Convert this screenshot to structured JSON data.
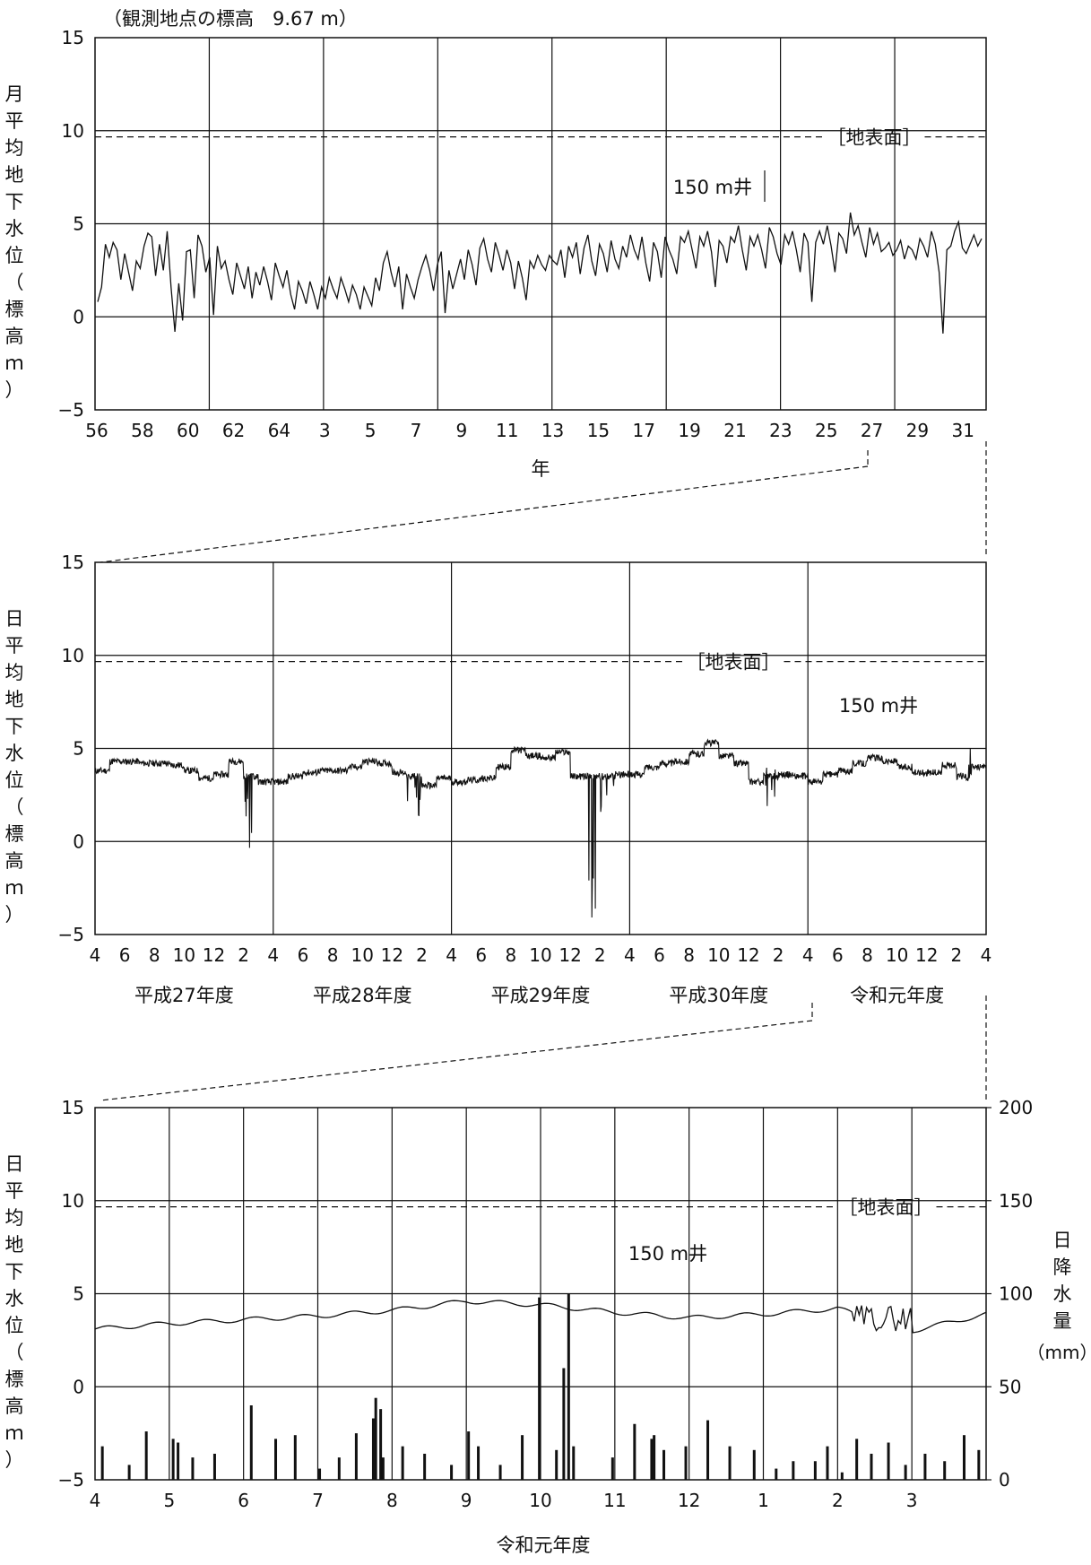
{
  "header": {
    "station_elevation": "（観測地点の標高　9.67 m）"
  },
  "style": {
    "line_color": "#111111",
    "grid_color": "#111111",
    "background": "#ffffff"
  },
  "chart_data": [
    {
      "type": "line",
      "ylabel": "月平均地下水位（標高ｍ）",
      "xlabel": "年",
      "ylim": [
        -5,
        15
      ],
      "yticks": [
        "15",
        "10",
        "5",
        "0",
        "−5"
      ],
      "xticks": [
        "56",
        "58",
        "60",
        "62",
        "64",
        "3",
        "5",
        "7",
        "9",
        "11",
        "13",
        "15",
        "17",
        "19",
        "21",
        "23",
        "25",
        "27",
        "29",
        "31"
      ],
      "ground_surface": {
        "label": "［地表面］",
        "value": 9.67
      },
      "series_label": "150 m井",
      "series": [
        {
          "x_start": "1981-04",
          "x_end": "2020-03",
          "values": [
            0.8,
            1.6,
            3.9,
            3.2,
            4.0,
            3.6,
            2.0,
            3.4,
            2.4,
            1.4,
            3.0,
            2.6,
            3.8,
            4.5,
            4.3,
            2.2,
            3.9,
            2.5,
            4.6,
            1.6,
            -0.8,
            1.8,
            -0.2,
            3.5,
            3.6,
            1.0,
            4.4,
            3.8,
            2.4,
            3.2,
            0.1,
            3.8,
            2.6,
            3.0,
            2.0,
            1.2,
            2.9,
            2.2,
            1.5,
            2.7,
            1.0,
            2.4,
            1.7,
            2.7,
            1.9,
            0.9,
            2.9,
            2.2,
            1.6,
            2.5,
            1.2,
            0.4,
            1.9,
            1.4,
            0.7,
            1.9,
            1.2,
            0.4,
            1.6,
            1.0,
            2.1,
            1.5,
            1.0,
            2.1,
            1.5,
            0.8,
            1.7,
            1.2,
            0.4,
            1.6,
            1.1,
            0.6,
            2.1,
            1.4,
            2.9,
            3.5,
            2.4,
            1.6,
            2.7,
            0.4,
            2.3,
            1.6,
            1.0,
            2.0,
            2.7,
            3.3,
            2.5,
            1.4,
            2.8,
            3.5,
            0.2,
            2.5,
            1.5,
            2.3,
            3.1,
            2.0,
            3.6,
            2.8,
            1.7,
            3.7,
            4.2,
            3.1,
            2.4,
            4.0,
            3.3,
            2.5,
            3.6,
            2.9,
            1.5,
            3.0,
            2.1,
            0.9,
            3.0,
            2.6,
            3.3,
            2.8,
            2.5,
            3.3,
            3.0,
            2.8,
            3.6,
            2.1,
            3.8,
            3.2,
            4.0,
            2.3,
            3.7,
            4.4,
            3.0,
            2.2,
            3.9,
            3.4,
            2.4,
            4.1,
            3.1,
            2.6,
            3.8,
            3.2,
            4.4,
            3.6,
            3.1,
            4.3,
            2.9,
            1.9,
            4.0,
            3.5,
            2.1,
            4.3,
            3.6,
            3.1,
            2.3,
            4.3,
            4.0,
            4.6,
            3.6,
            2.6,
            4.3,
            3.8,
            4.6,
            3.5,
            1.6,
            4.1,
            3.8,
            2.9,
            4.3,
            4.0,
            4.9,
            3.6,
            2.5,
            4.3,
            3.8,
            4.4,
            3.6,
            2.6,
            4.8,
            4.3,
            3.4,
            2.8,
            4.4,
            3.9,
            4.6,
            3.6,
            2.4,
            4.5,
            4.0,
            0.8,
            4.0,
            4.6,
            3.9,
            4.9,
            3.8,
            2.4,
            4.5,
            4.2,
            3.4,
            5.6,
            4.4,
            4.9,
            4.0,
            3.2,
            4.8,
            3.9,
            4.5,
            3.5,
            3.7,
            4.0,
            3.3,
            3.6,
            4.1,
            3.1,
            3.8,
            3.6,
            3.1,
            4.2,
            3.8,
            3.2,
            4.6,
            3.9,
            2.4,
            -0.9,
            3.6,
            3.8,
            4.6,
            5.1,
            3.7,
            3.4,
            3.9,
            4.4,
            3.8,
            4.2
          ]
        }
      ]
    },
    {
      "type": "line",
      "ylabel": "日平均地下水位（標高ｍ）",
      "ylim": [
        -5,
        15
      ],
      "yticks": [
        "15",
        "10",
        "5",
        "0",
        "−5"
      ],
      "xticks": [
        "4",
        "6",
        "8",
        "10",
        "12",
        "2",
        "4",
        "6",
        "8",
        "10",
        "12",
        "2",
        "4",
        "6",
        "8",
        "10",
        "12",
        "2",
        "4",
        "6",
        "8",
        "10",
        "12",
        "2",
        "4",
        "6",
        "8",
        "10",
        "12",
        "2",
        "4"
      ],
      "year_labels": [
        "平成27年度",
        "平成28年度",
        "平成29年度",
        "平成30年度",
        "令和元年度"
      ],
      "ground_surface": {
        "label": "［地表面］",
        "value": 9.67
      },
      "series_label": "150 m井",
      "series": [
        {
          "x_start": "2015-04",
          "x_end": "2020-03",
          "monthly_levels": [
            3.8,
            4.3,
            4.3,
            4.2,
            4.2,
            4.1,
            3.8,
            3.4,
            3.6,
            4.3,
            -0.4,
            3.2,
            3.2,
            3.5,
            3.7,
            3.8,
            3.8,
            4.0,
            4.3,
            4.2,
            3.7,
            0.4,
            3.0,
            3.4,
            3.2,
            3.3,
            3.4,
            4.0,
            4.9,
            4.6,
            4.5,
            4.8,
            3.5,
            -4.2,
            1.5,
            3.6,
            3.6,
            4.0,
            4.2,
            4.3,
            4.7,
            5.3,
            4.6,
            4.2,
            3.2,
            1.7,
            3.6,
            3.5,
            3.2,
            3.6,
            3.8,
            4.2,
            4.5,
            4.3,
            4.0,
            3.7,
            3.7,
            4.1,
            2.3,
            4.0
          ]
        }
      ]
    },
    {
      "type": "line+bar",
      "ylabel": "日平均地下水位（標高ｍ）",
      "y2label": "日降水量（mm）",
      "xlabel": "令和元年度",
      "ylim": [
        -5,
        15
      ],
      "y2lim": [
        0,
        200
      ],
      "yticks": [
        "15",
        "10",
        "5",
        "0",
        "−5"
      ],
      "y2ticks": [
        "200",
        "150",
        "100",
        "50",
        "0"
      ],
      "xticks": [
        "4",
        "5",
        "6",
        "7",
        "8",
        "9",
        "10",
        "11",
        "12",
        "1",
        "2",
        "3"
      ],
      "ground_surface": {
        "label": "［地表面］",
        "value": 9.67
      },
      "series_label": "150 m井",
      "series": [
        {
          "name": "groundwater",
          "x_start": "2019-04-01",
          "x_end": "2020-03-31",
          "monthly_levels": [
            3.1,
            3.4,
            3.6,
            3.8,
            4.1,
            4.6,
            4.4,
            4.0,
            3.7,
            3.9,
            4.2,
            3.0,
            3.9
          ]
        },
        {
          "name": "precipitation",
          "unit": "mm",
          "bars": [
            [
              3,
              18
            ],
            [
              14,
              8
            ],
            [
              21,
              26
            ],
            [
              32,
              22
            ],
            [
              34,
              20
            ],
            [
              40,
              12
            ],
            [
              49,
              14
            ],
            [
              64,
              40
            ],
            [
              74,
              22
            ],
            [
              82,
              24
            ],
            [
              92,
              6
            ],
            [
              100,
              12
            ],
            [
              107,
              25
            ],
            [
              114,
              33
            ],
            [
              115,
              44
            ],
            [
              117,
              38
            ],
            [
              118,
              12
            ],
            [
              126,
              18
            ],
            [
              135,
              14
            ],
            [
              146,
              8
            ],
            [
              153,
              26
            ],
            [
              157,
              18
            ],
            [
              166,
              8
            ],
            [
              175,
              24
            ],
            [
              182,
              98
            ],
            [
              189,
              16
            ],
            [
              192,
              60
            ],
            [
              194,
              100
            ],
            [
              196,
              18
            ],
            [
              212,
              12
            ],
            [
              221,
              30
            ],
            [
              228,
              22
            ],
            [
              229,
              24
            ],
            [
              233,
              16
            ],
            [
              242,
              18
            ],
            [
              251,
              32
            ],
            [
              260,
              18
            ],
            [
              270,
              16
            ],
            [
              279,
              6
            ],
            [
              286,
              10
            ],
            [
              295,
              10
            ],
            [
              300,
              18
            ],
            [
              306,
              4
            ],
            [
              312,
              22
            ],
            [
              318,
              14
            ],
            [
              325,
              20
            ],
            [
              332,
              8
            ],
            [
              340,
              14
            ],
            [
              348,
              10
            ],
            [
              356,
              24
            ],
            [
              362,
              16
            ]
          ]
        }
      ]
    }
  ]
}
